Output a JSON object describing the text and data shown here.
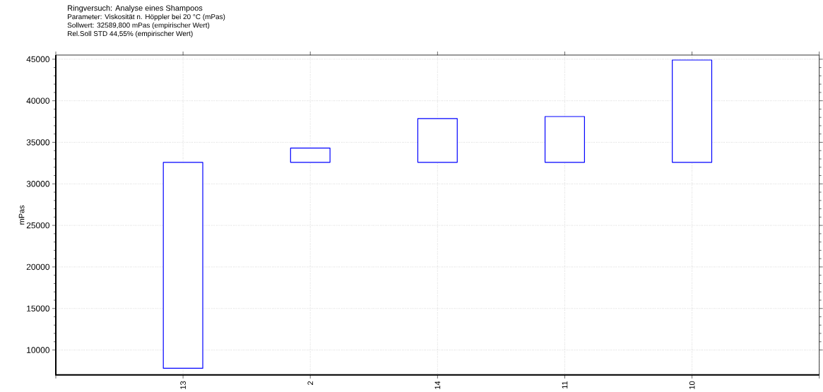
{
  "chart_data": {
    "type": "bar",
    "title": "Ringversuch:  Analyse eines Shampoos",
    "annotations": [
      "Parameter:  Viskosität n. Höppler bei 20 °C (mPas)",
      "Sollwert:  32589,800 mPas (empirischer Wert)",
      "Rel.Soll STD  44,55% (empirischer Wert)"
    ],
    "ylabel": "mPas",
    "categories": [
      "13",
      "2",
      "14",
      "11",
      "10"
    ],
    "base": [
      32590,
      32590,
      32590,
      32590,
      32590
    ],
    "values": [
      -24790,
      1710,
      5260,
      5510,
      12310
    ],
    "color": "#0000ff",
    "ylim": [
      7000,
      45500
    ],
    "yticks": [
      10000,
      15000,
      20000,
      25000,
      30000,
      35000,
      40000,
      45000
    ],
    "grid": true
  }
}
